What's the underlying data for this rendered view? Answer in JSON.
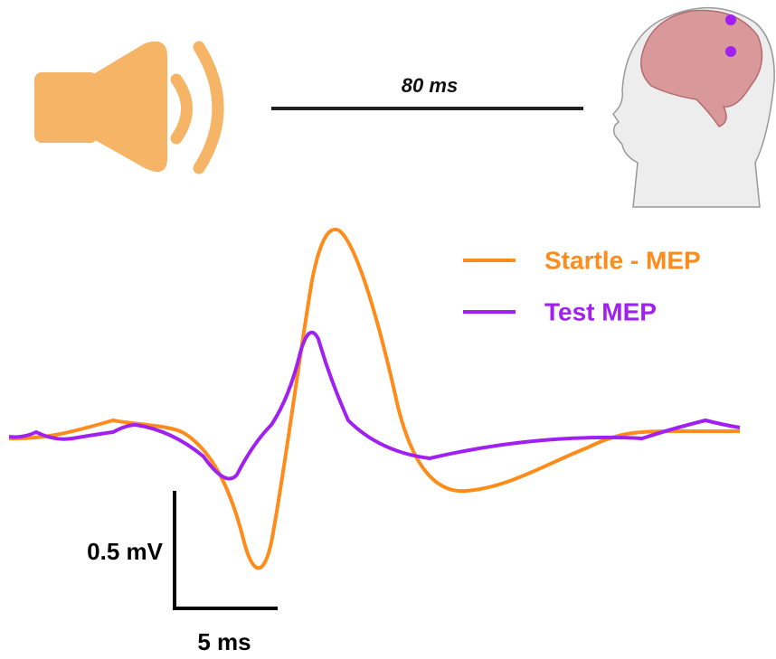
{
  "stimulus": {
    "interval_label": "80 ms"
  },
  "legend": [
    {
      "label": "Startle - MEP"
    },
    {
      "label": "Test MEP"
    }
  ],
  "scale_bars": {
    "vertical_label": "0.5 mV",
    "horizontal_label": "5 ms"
  }
}
